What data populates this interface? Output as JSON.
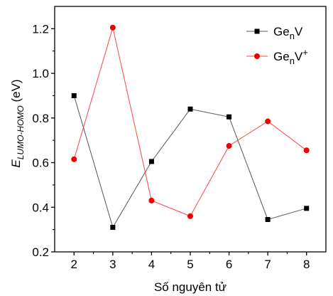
{
  "chart_data": {
    "type": "line",
    "title": "",
    "xlabel": "Số nguyên tử",
    "ylabel": {
      "main": "E",
      "subscript": "LUMO-HOMO",
      "unit": " (eV)"
    },
    "x": [
      2,
      3,
      4,
      5,
      6,
      7,
      8
    ],
    "xlim": [
      1.5,
      8.5
    ],
    "ylim": [
      0.2,
      1.3
    ],
    "xticks": [
      2,
      3,
      4,
      5,
      6,
      7,
      8
    ],
    "yticks": [
      0.2,
      0.4,
      0.6,
      0.8,
      1.0,
      1.2
    ],
    "ytick_labels": [
      "0.2",
      "0.4",
      "0.6",
      "0.8",
      "1.0",
      "1.2"
    ],
    "grid": false,
    "legend_position": "top-right",
    "series": [
      {
        "name": {
          "base": "Ge",
          "sub": "n",
          "rest": "V",
          "sup": ""
        },
        "values": [
          0.9,
          0.31,
          0.605,
          0.84,
          0.805,
          0.345,
          0.395
        ],
        "line_color": "#555555",
        "marker_color": "#000000",
        "marker": "square"
      },
      {
        "name": {
          "base": "Ge",
          "sub": "n",
          "rest": "V",
          "sup": "+"
        },
        "values": [
          0.615,
          1.205,
          0.43,
          0.36,
          0.675,
          0.785,
          0.655
        ],
        "line_color": "#ff4444",
        "marker_color": "#ee0000",
        "marker": "circle"
      }
    ]
  }
}
